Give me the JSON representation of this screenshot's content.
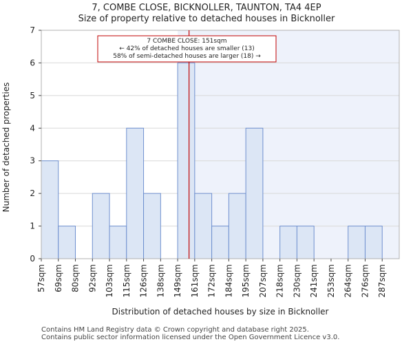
{
  "chart_data": {
    "type": "bar",
    "title": "7, COMBE CLOSE, BICKNOLLER, TAUNTON, TA4 4EP",
    "subtitle": "Size of property relative to detached houses in Bicknoller",
    "xlabel": "Distribution of detached houses by size in Bicknoller",
    "ylabel": "Number of detached properties",
    "categories": [
      "57sqm",
      "69sqm",
      "80sqm",
      "92sqm",
      "103sqm",
      "115sqm",
      "126sqm",
      "138sqm",
      "149sqm",
      "161sqm",
      "172sqm",
      "184sqm",
      "195sqm",
      "207sqm",
      "218sqm",
      "230sqm",
      "241sqm",
      "253sqm",
      "264sqm",
      "276sqm",
      "287sqm"
    ],
    "values": [
      3,
      1,
      0,
      2,
      1,
      4,
      2,
      0,
      6,
      2,
      1,
      2,
      4,
      0,
      1,
      1,
      0,
      0,
      1,
      1,
      0
    ],
    "ylim": [
      0,
      7
    ],
    "yticks": [
      0,
      1,
      2,
      3,
      4,
      5,
      6,
      7
    ],
    "property_marker": {
      "value_sqm": 151,
      "label": "7 COMBE CLOSE: 151sqm"
    },
    "annotation": [
      "7 COMBE CLOSE: 151sqm",
      "← 42% of detached houses are smaller (13)",
      "58% of semi-detached houses are larger (18) →"
    ],
    "colors": {
      "bar_fill": "#dce6f5",
      "bar_stroke": "#6e8fcf",
      "shade": "#eef2fb",
      "marker": "#c00000",
      "grid": "#d8d8d8",
      "annotation_border": "#c00000"
    }
  },
  "footer": {
    "line1": "Contains HM Land Registry data © Crown copyright and database right 2025.",
    "line2": "Contains public sector information licensed under the Open Government Licence v3.0."
  }
}
